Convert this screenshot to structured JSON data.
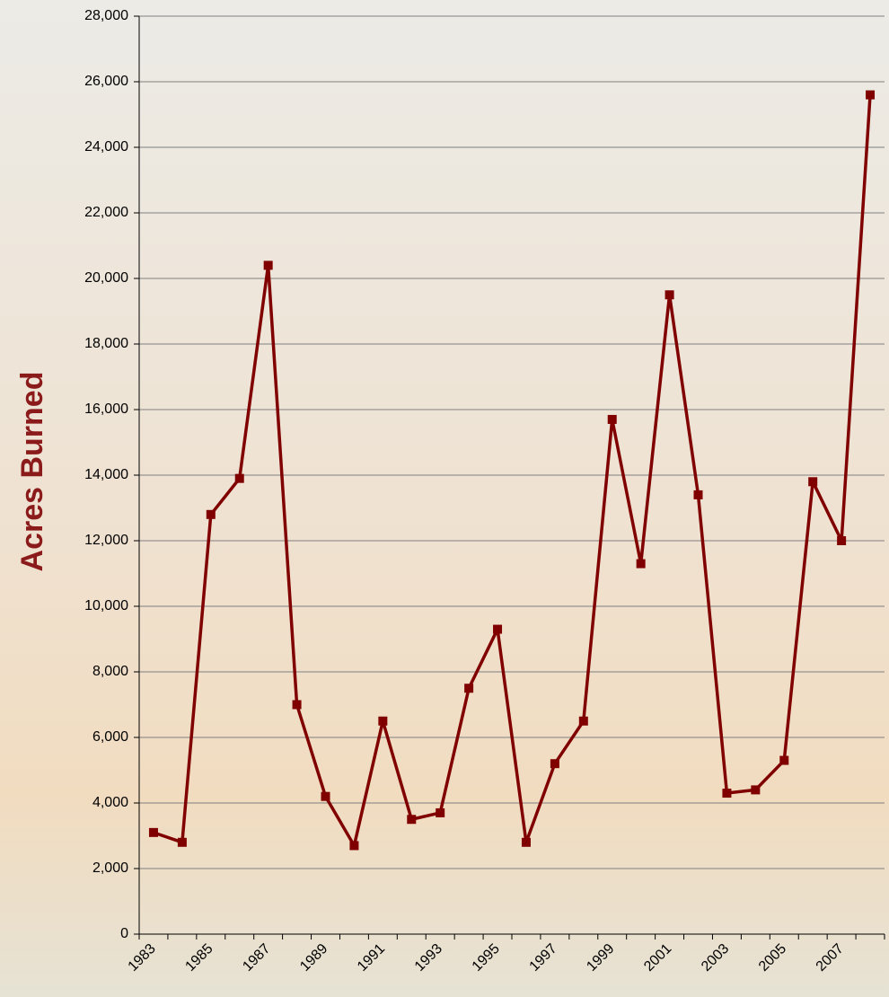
{
  "chart_data": {
    "type": "line",
    "y_label": "Acres Burned",
    "categories": [
      "1983",
      null,
      "1985",
      null,
      "1987",
      null,
      "1989",
      null,
      "1991",
      null,
      "1993",
      null,
      "1995",
      null,
      "1997",
      null,
      "1999",
      null,
      "2001",
      null,
      "2003",
      null,
      "2005",
      null,
      "2007",
      null
    ],
    "values": [
      3100,
      2800,
      12800,
      13900,
      20400,
      7000,
      4200,
      2700,
      6500,
      3500,
      3700,
      7500,
      9300,
      2800,
      5200,
      6500,
      15700,
      11300,
      19500,
      13400,
      4300,
      4400,
      5300,
      13800,
      12000,
      25600
    ],
    "color": "#800000",
    "ylim": [
      0,
      28000
    ],
    "yticks": [
      0,
      {
        "value": 2000,
        "label": "2,000"
      },
      {
        "value": 4000,
        "label": "4,000"
      },
      {
        "value": 6000,
        "label": "6,000"
      },
      {
        "value": 8000,
        "label": "8,000"
      },
      {
        "value": 10000,
        "label": "10,000"
      },
      {
        "value": 12000,
        "label": "12,000"
      },
      {
        "value": 14000,
        "label": "14,000"
      },
      {
        "value": 16000,
        "label": "16,000"
      },
      {
        "value": 18000,
        "label": "18,000"
      },
      {
        "value": 20000,
        "label": "20,000"
      },
      {
        "value": 22000,
        "label": "22,000"
      },
      {
        "value": 24000,
        "label": "24,000"
      },
      {
        "value": 26000,
        "label": "26,000"
      },
      {
        "value": 28000,
        "label": "28,000"
      }
    ],
    "grid": true
  }
}
